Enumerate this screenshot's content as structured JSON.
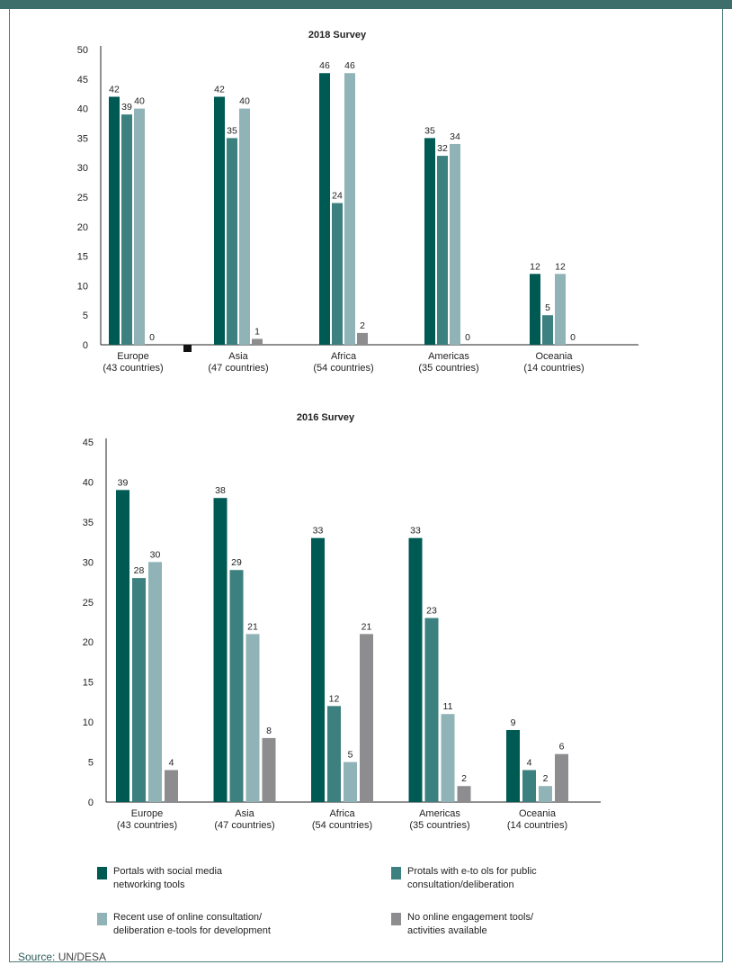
{
  "colors": {
    "series": [
      "#005a54",
      "#3d8080",
      "#8fb3b6",
      "#8d8d8f"
    ],
    "frame": "#3d6e6c",
    "source_label": "#2d5c5a"
  },
  "legend": [
    {
      "label": "Portals with social media\nnetworking tools",
      "icon": "square-swatch"
    },
    {
      "label": "Protals with e-to ols for public\nconsultation/deliberation",
      "icon": "square-swatch"
    },
    {
      "label": "Recent use of online consultation/\ndeliberation e-tools for development",
      "icon": "square-swatch"
    },
    {
      "label": "No online engagement tools/\nactivities available",
      "icon": "square-swatch"
    }
  ],
  "source": {
    "prefix": "Source:",
    "text": " UN/DESA"
  },
  "chart_data": [
    {
      "type": "bar",
      "title": "2018 Survey",
      "categories": [
        [
          "Europe",
          "(43 countries)"
        ],
        [
          "Asia",
          "(47 countries)"
        ],
        [
          "Africa",
          "(54 countries)"
        ],
        [
          "Americas",
          "(35 countries)"
        ],
        [
          "Oceania",
          "(14 countries)"
        ]
      ],
      "series": [
        {
          "name": "Portals with social media networking tools",
          "values": [
            42,
            42,
            46,
            35,
            12
          ]
        },
        {
          "name": "Protals with e-to ols for public consultation/deliberation",
          "values": [
            39,
            35,
            24,
            32,
            5
          ]
        },
        {
          "name": "Recent use of online consultation/deliberation e-tools for development",
          "values": [
            40,
            40,
            46,
            34,
            12
          ]
        },
        {
          "name": "No online engagement tools/activities available",
          "values": [
            0,
            1,
            2,
            0,
            0
          ]
        }
      ],
      "ylim": [
        0,
        50
      ],
      "yticks": [
        0,
        5,
        10,
        15,
        20,
        25,
        30,
        35,
        40,
        45,
        50
      ],
      "xlabel": "",
      "ylabel": ""
    },
    {
      "type": "bar",
      "title": "2016 Survey",
      "categories": [
        [
          "Europe",
          "(43 countries)"
        ],
        [
          "Asia",
          "(47 countries)"
        ],
        [
          "Africa",
          "(54 countries)"
        ],
        [
          "Americas",
          "(35 countries)"
        ],
        [
          "Oceania",
          "(14 countries)"
        ]
      ],
      "series": [
        {
          "name": "Portals with social media networking tools",
          "values": [
            39,
            38,
            33,
            33,
            9
          ]
        },
        {
          "name": "Protals with e-to ols for public consultation/deliberation",
          "values": [
            28,
            29,
            12,
            23,
            4
          ]
        },
        {
          "name": "Recent use of online consultation/deliberation e-tools for development",
          "values": [
            30,
            21,
            5,
            11,
            2
          ]
        },
        {
          "name": "No online engagement tools/activities available",
          "values": [
            4,
            8,
            21,
            2,
            6
          ]
        }
      ],
      "ylim": [
        0,
        45
      ],
      "yticks": [
        0,
        5,
        10,
        15,
        20,
        25,
        30,
        35,
        40,
        45
      ],
      "xlabel": "",
      "ylabel": ""
    }
  ]
}
